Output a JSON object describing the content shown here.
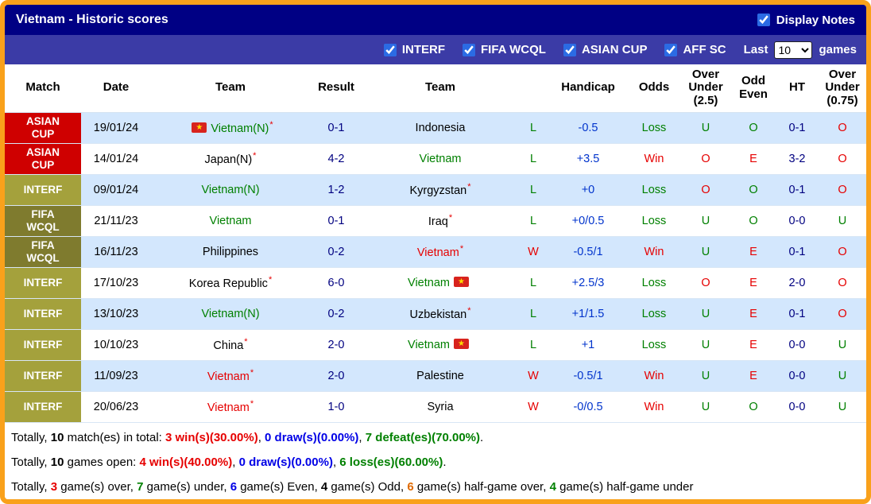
{
  "header": {
    "title": "Vietnam - Historic scores",
    "display_notes_label": "Display Notes",
    "display_notes_checked": true
  },
  "filter_bar": {
    "filters": [
      {
        "label": "INTERF",
        "checked": true
      },
      {
        "label": "FIFA WCQL",
        "checked": true
      },
      {
        "label": "ASIAN CUP",
        "checked": true
      },
      {
        "label": "AFF SC",
        "checked": true
      }
    ],
    "last_label": "Last",
    "games_count": "10",
    "games_options": [
      "10"
    ],
    "games_label": "games"
  },
  "palette": {
    "green": "#008000",
    "red": "#e60000",
    "blue": "#0000e6",
    "navy": "#000080",
    "handicap": "#0033cc",
    "black": "#000000",
    "orange": "#e06a00"
  },
  "match_colors": {
    "ASIAN CUP": "#cf0000",
    "INTERF": "#a4a13c",
    "FIFA WCQL": "#7f7b2e"
  },
  "table": {
    "headers": [
      [
        "Match"
      ],
      [
        "Date"
      ],
      [
        "Team"
      ],
      [
        "Result"
      ],
      [
        "Team"
      ],
      [
        ""
      ],
      [
        "Handicap"
      ],
      [
        "Odds"
      ],
      [
        "Over",
        "Under",
        "(2.5)"
      ],
      [
        "Odd",
        "Even"
      ],
      [
        "HT"
      ],
      [
        "Over",
        "Under",
        "(0.75)"
      ]
    ],
    "rows": [
      {
        "match": "ASIAN CUP",
        "date": "19/01/24",
        "home": {
          "name": "Vietnam(N)",
          "color": "green",
          "star": true,
          "flag": "left"
        },
        "result": "0-1",
        "away": {
          "name": "Indonesia",
          "color": "black",
          "star": false,
          "flag": null
        },
        "wl": {
          "t": "L",
          "c": "green"
        },
        "handicap": "-0.5",
        "odds": {
          "t": "Loss",
          "c": "green"
        },
        "ou25": {
          "t": "U",
          "c": "green"
        },
        "oe": {
          "t": "O",
          "c": "green"
        },
        "ht": "0-1",
        "ou075": {
          "t": "O",
          "c": "red"
        }
      },
      {
        "match": "ASIAN CUP",
        "date": "14/01/24",
        "home": {
          "name": "Japan(N)",
          "color": "black",
          "star": true,
          "flag": null
        },
        "result": "4-2",
        "away": {
          "name": "Vietnam",
          "color": "green",
          "star": false,
          "flag": null
        },
        "wl": {
          "t": "L",
          "c": "green"
        },
        "handicap": "+3.5",
        "odds": {
          "t": "Win",
          "c": "red"
        },
        "ou25": {
          "t": "O",
          "c": "red"
        },
        "oe": {
          "t": "E",
          "c": "red"
        },
        "ht": "3-2",
        "ou075": {
          "t": "O",
          "c": "red"
        }
      },
      {
        "match": "INTERF",
        "date": "09/01/24",
        "home": {
          "name": "Vietnam(N)",
          "color": "green",
          "star": false,
          "flag": null
        },
        "result": "1-2",
        "away": {
          "name": "Kyrgyzstan",
          "color": "black",
          "star": true,
          "flag": null
        },
        "wl": {
          "t": "L",
          "c": "green"
        },
        "handicap": "+0",
        "odds": {
          "t": "Loss",
          "c": "green"
        },
        "ou25": {
          "t": "O",
          "c": "red"
        },
        "oe": {
          "t": "O",
          "c": "green"
        },
        "ht": "0-1",
        "ou075": {
          "t": "O",
          "c": "red"
        }
      },
      {
        "match": "FIFA WCQL",
        "date": "21/11/23",
        "home": {
          "name": "Vietnam",
          "color": "green",
          "star": false,
          "flag": null
        },
        "result": "0-1",
        "away": {
          "name": "Iraq",
          "color": "black",
          "star": true,
          "flag": null
        },
        "wl": {
          "t": "L",
          "c": "green"
        },
        "handicap": "+0/0.5",
        "odds": {
          "t": "Loss",
          "c": "green"
        },
        "ou25": {
          "t": "U",
          "c": "green"
        },
        "oe": {
          "t": "O",
          "c": "green"
        },
        "ht": "0-0",
        "ou075": {
          "t": "U",
          "c": "green"
        }
      },
      {
        "match": "FIFA WCQL",
        "date": "16/11/23",
        "home": {
          "name": "Philippines",
          "color": "black",
          "star": false,
          "flag": null
        },
        "result": "0-2",
        "away": {
          "name": "Vietnam",
          "color": "red",
          "star": true,
          "flag": null
        },
        "wl": {
          "t": "W",
          "c": "red"
        },
        "handicap": "-0.5/1",
        "odds": {
          "t": "Win",
          "c": "red"
        },
        "ou25": {
          "t": "U",
          "c": "green"
        },
        "oe": {
          "t": "E",
          "c": "red"
        },
        "ht": "0-1",
        "ou075": {
          "t": "O",
          "c": "red"
        }
      },
      {
        "match": "INTERF",
        "date": "17/10/23",
        "home": {
          "name": "Korea Republic",
          "color": "black",
          "star": true,
          "flag": null
        },
        "result": "6-0",
        "away": {
          "name": "Vietnam",
          "color": "green",
          "star": false,
          "flag": "right"
        },
        "wl": {
          "t": "L",
          "c": "green"
        },
        "handicap": "+2.5/3",
        "odds": {
          "t": "Loss",
          "c": "green"
        },
        "ou25": {
          "t": "O",
          "c": "red"
        },
        "oe": {
          "t": "E",
          "c": "red"
        },
        "ht": "2-0",
        "ou075": {
          "t": "O",
          "c": "red"
        }
      },
      {
        "match": "INTERF",
        "date": "13/10/23",
        "home": {
          "name": "Vietnam(N)",
          "color": "green",
          "star": false,
          "flag": null
        },
        "result": "0-2",
        "away": {
          "name": "Uzbekistan",
          "color": "black",
          "star": true,
          "flag": null
        },
        "wl": {
          "t": "L",
          "c": "green"
        },
        "handicap": "+1/1.5",
        "odds": {
          "t": "Loss",
          "c": "green"
        },
        "ou25": {
          "t": "U",
          "c": "green"
        },
        "oe": {
          "t": "E",
          "c": "red"
        },
        "ht": "0-1",
        "ou075": {
          "t": "O",
          "c": "red"
        }
      },
      {
        "match": "INTERF",
        "date": "10/10/23",
        "home": {
          "name": "China",
          "color": "black",
          "star": true,
          "flag": null
        },
        "result": "2-0",
        "away": {
          "name": "Vietnam",
          "color": "green",
          "star": false,
          "flag": "right"
        },
        "wl": {
          "t": "L",
          "c": "green"
        },
        "handicap": "+1",
        "odds": {
          "t": "Loss",
          "c": "green"
        },
        "ou25": {
          "t": "U",
          "c": "green"
        },
        "oe": {
          "t": "E",
          "c": "red"
        },
        "ht": "0-0",
        "ou075": {
          "t": "U",
          "c": "green"
        }
      },
      {
        "match": "INTERF",
        "date": "11/09/23",
        "home": {
          "name": "Vietnam",
          "color": "red",
          "star": true,
          "flag": null
        },
        "result": "2-0",
        "away": {
          "name": "Palestine",
          "color": "black",
          "star": false,
          "flag": null
        },
        "wl": {
          "t": "W",
          "c": "red"
        },
        "handicap": "-0.5/1",
        "odds": {
          "t": "Win",
          "c": "red"
        },
        "ou25": {
          "t": "U",
          "c": "green"
        },
        "oe": {
          "t": "E",
          "c": "red"
        },
        "ht": "0-0",
        "ou075": {
          "t": "U",
          "c": "green"
        }
      },
      {
        "match": "INTERF",
        "date": "20/06/23",
        "home": {
          "name": "Vietnam",
          "color": "red",
          "star": true,
          "flag": null
        },
        "result": "1-0",
        "away": {
          "name": "Syria",
          "color": "black",
          "star": false,
          "flag": null
        },
        "wl": {
          "t": "W",
          "c": "red"
        },
        "handicap": "-0/0.5",
        "odds": {
          "t": "Win",
          "c": "red"
        },
        "ou25": {
          "t": "U",
          "c": "green"
        },
        "oe": {
          "t": "O",
          "c": "green"
        },
        "ht": "0-0",
        "ou075": {
          "t": "U",
          "c": "green"
        }
      }
    ]
  },
  "summary": [
    {
      "segments": [
        {
          "t": "Totally, "
        },
        {
          "t": "10",
          "b": true
        },
        {
          "t": " match(es) in total: "
        },
        {
          "t": "3 win(s)(30.00%)",
          "c": "red",
          "b": true
        },
        {
          "t": ", "
        },
        {
          "t": "0 draw(s)(0.00%)",
          "c": "blue",
          "b": true
        },
        {
          "t": ", "
        },
        {
          "t": "7 defeat(es)(70.00%)",
          "c": "green",
          "b": true
        },
        {
          "t": "."
        }
      ]
    },
    {
      "segments": [
        {
          "t": "Totally, "
        },
        {
          "t": "10",
          "b": true
        },
        {
          "t": " games open: "
        },
        {
          "t": "4 win(s)(40.00%)",
          "c": "red",
          "b": true
        },
        {
          "t": ", "
        },
        {
          "t": "0 draw(s)(0.00%)",
          "c": "blue",
          "b": true
        },
        {
          "t": ", "
        },
        {
          "t": "6 loss(es)(60.00%)",
          "c": "green",
          "b": true
        },
        {
          "t": "."
        }
      ]
    },
    {
      "segments": [
        {
          "t": "Totally, "
        },
        {
          "t": "3",
          "c": "red",
          "b": true
        },
        {
          "t": " game(s) over, "
        },
        {
          "t": "7",
          "c": "green",
          "b": true
        },
        {
          "t": " game(s) under, "
        },
        {
          "t": "6",
          "c": "blue",
          "b": true
        },
        {
          "t": " game(s) Even, "
        },
        {
          "t": "4",
          "c": "black",
          "b": true
        },
        {
          "t": " game(s) Odd, "
        },
        {
          "t": "6",
          "c": "orange",
          "b": true
        },
        {
          "t": " game(s) half-game over, "
        },
        {
          "t": "4",
          "c": "green",
          "b": true
        },
        {
          "t": " game(s) half-game under"
        }
      ]
    }
  ]
}
